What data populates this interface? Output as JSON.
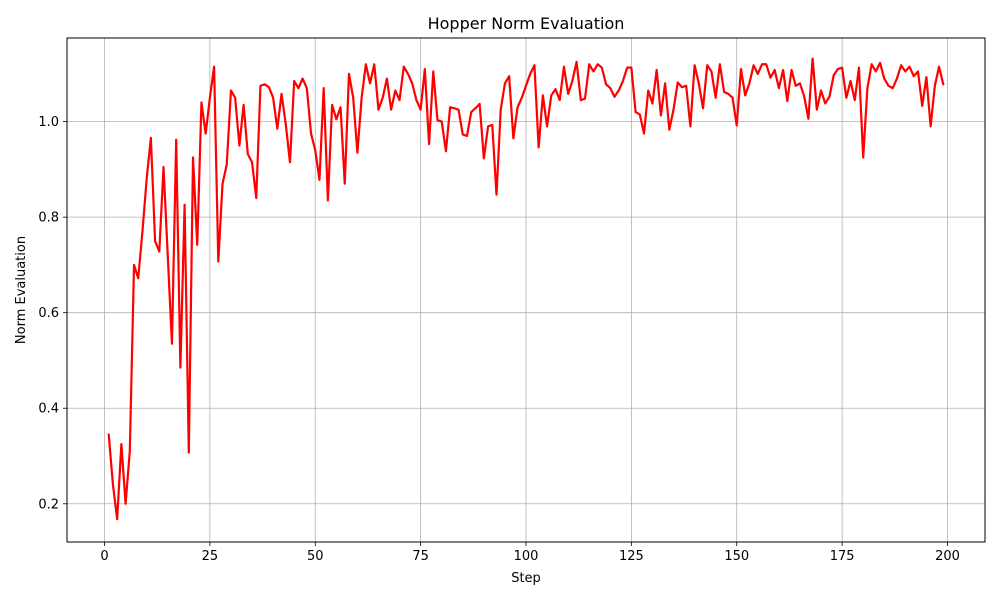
{
  "chart_data": {
    "type": "line",
    "title": "Hopper Norm Evaluation",
    "xlabel": "Step",
    "ylabel": "Norm Evaluation",
    "xlim": [
      -8.9,
      208.9
    ],
    "ylim": [
      0.12,
      1.175
    ],
    "x_ticks": [
      0,
      25,
      50,
      75,
      100,
      125,
      150,
      175,
      200
    ],
    "y_ticks": [
      0.2,
      0.4,
      0.6,
      0.8,
      1.0
    ],
    "x_tick_labels": [
      "0",
      "25",
      "50",
      "75",
      "100",
      "125",
      "150",
      "175",
      "200"
    ],
    "y_tick_labels": [
      "0.2",
      "0.4",
      "0.6",
      "0.8",
      "1.0"
    ],
    "grid": true,
    "series": [
      {
        "color": "#ff0000",
        "x_start": 1,
        "x_step": 1,
        "values": [
          0.345,
          0.24,
          0.168,
          0.325,
          0.2,
          0.31,
          0.7,
          0.672,
          0.77,
          0.88,
          0.966,
          0.75,
          0.728,
          0.905,
          0.72,
          0.535,
          0.962,
          0.485,
          0.826,
          0.307,
          0.925,
          0.742,
          1.04,
          0.975,
          1.05,
          1.115,
          0.707,
          0.87,
          0.91,
          1.065,
          1.05,
          0.95,
          1.035,
          0.932,
          0.915,
          0.84,
          1.075,
          1.078,
          1.072,
          1.05,
          0.985,
          1.058,
          0.995,
          0.915,
          1.085,
          1.07,
          1.09,
          1.07,
          0.975,
          0.94,
          0.878,
          1.07,
          0.835,
          1.035,
          1.005,
          1.03,
          0.87,
          1.1,
          1.05,
          0.935,
          1.05,
          1.12,
          1.08,
          1.12,
          1.025,
          1.05,
          1.09,
          1.025,
          1.065,
          1.045,
          1.115,
          1.1,
          1.08,
          1.045,
          1.025,
          1.11,
          0.953,
          1.105,
          1.003,
          1.0,
          0.938,
          1.03,
          1.028,
          1.025,
          0.973,
          0.97,
          1.02,
          1.028,
          1.037,
          0.923,
          0.99,
          0.993,
          0.847,
          1.025,
          1.08,
          1.095,
          0.965,
          1.03,
          1.05,
          1.075,
          1.1,
          1.118,
          0.946,
          1.055,
          0.99,
          1.055,
          1.068,
          1.045,
          1.115,
          1.058,
          1.085,
          1.125,
          1.045,
          1.048,
          1.12,
          1.105,
          1.12,
          1.113,
          1.078,
          1.07,
          1.052,
          1.065,
          1.085,
          1.113,
          1.113,
          1.02,
          1.015,
          0.975,
          1.065,
          1.038,
          1.108,
          1.013,
          1.08,
          0.983,
          1.025,
          1.082,
          1.072,
          1.075,
          0.99,
          1.118,
          1.08,
          1.028,
          1.118,
          1.105,
          1.05,
          1.12,
          1.062,
          1.058,
          1.05,
          0.992,
          1.11,
          1.055,
          1.08,
          1.118,
          1.1,
          1.12,
          1.12,
          1.092,
          1.108,
          1.07,
          1.108,
          1.043,
          1.108,
          1.075,
          1.08,
          1.053,
          1.006,
          1.132,
          1.025,
          1.065,
          1.038,
          1.052,
          1.097,
          1.11,
          1.113,
          1.05,
          1.085,
          1.045,
          1.113,
          0.925,
          1.07,
          1.12,
          1.105,
          1.123,
          1.09,
          1.075,
          1.07,
          1.09,
          1.118,
          1.105,
          1.115,
          1.095,
          1.105,
          1.033,
          1.093,
          0.99,
          1.075,
          1.115,
          1.078
        ]
      }
    ]
  }
}
